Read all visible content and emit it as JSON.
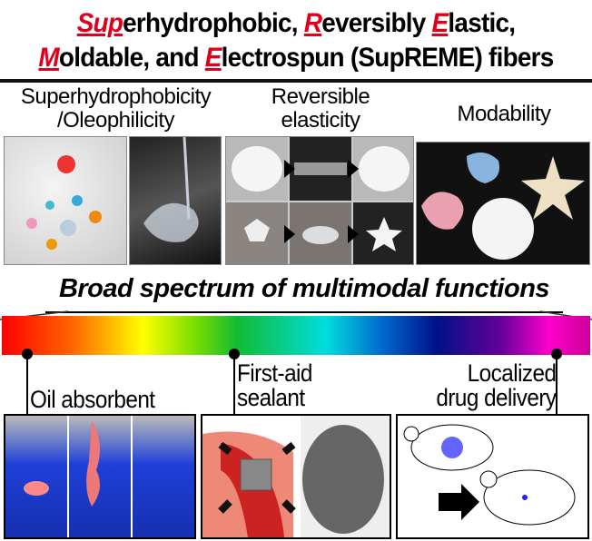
{
  "title": {
    "line1": {
      "r1": "Sup",
      "t1": "erhydrophobic, ",
      "r2": "R",
      "t2": "eversibly ",
      "r3": "E",
      "t3": "lastic,"
    },
    "line2": {
      "r1": "M",
      "t1": "oldable, and ",
      "r2": "E",
      "t2": "lectrospun (SupREME) fibers"
    }
  },
  "accent_color": "#e0001b",
  "sections": [
    {
      "line1": "Superhydrophobicity",
      "line2": "/Oleophilicity"
    },
    {
      "line1": "Reversible",
      "line2": "elasticity"
    },
    {
      "line1": "Modability"
    }
  ],
  "banner": "Broad spectrum of multimodal functions",
  "functions": [
    {
      "label": "Oil absorbent"
    },
    {
      "line1": "First-aid",
      "line2": "sealant"
    },
    {
      "line1": "Localized",
      "line2": "drug delivery"
    }
  ]
}
